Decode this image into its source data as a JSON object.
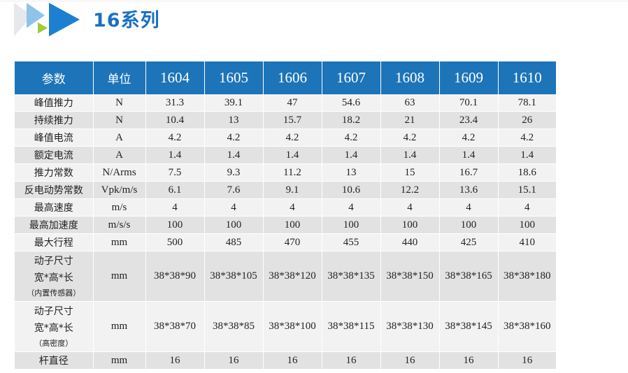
{
  "header": {
    "title": "16系列"
  },
  "table": {
    "headers": [
      "参数",
      "单位",
      "1604",
      "1605",
      "1606",
      "1607",
      "1608",
      "1609",
      "1610"
    ],
    "rows": [
      {
        "param": "峰值推力",
        "unit": "N",
        "values": [
          "31.3",
          "39.1",
          "47",
          "54.6",
          "63",
          "70.1",
          "78.1"
        ]
      },
      {
        "param": "持续推力",
        "unit": "N",
        "values": [
          "10.4",
          "13",
          "15.7",
          "18.2",
          "21",
          "23.4",
          "26"
        ]
      },
      {
        "param": "峰值电流",
        "unit": "A",
        "values": [
          "4.2",
          "4.2",
          "4.2",
          "4.2",
          "4.2",
          "4.2",
          "4.2"
        ]
      },
      {
        "param": "额定电流",
        "unit": "A",
        "values": [
          "1.4",
          "1.4",
          "1.4",
          "1.4",
          "1.4",
          "1.4",
          "1.4"
        ]
      },
      {
        "param": "推力常数",
        "unit": "N/Arms",
        "values": [
          "7.5",
          "9.3",
          "11.2",
          "13",
          "15",
          "16.7",
          "18.6"
        ]
      },
      {
        "param": "反电动势常数",
        "unit": "Vpk/m/s",
        "values": [
          "6.1",
          "7.6",
          "9.1",
          "10.6",
          "12.2",
          "13.6",
          "15.1"
        ]
      },
      {
        "param": "最高速度",
        "unit": "m/s",
        "values": [
          "4",
          "4",
          "4",
          "4",
          "4",
          "4",
          "4"
        ]
      },
      {
        "param": "最高加速度",
        "unit": "m/s/s",
        "values": [
          "100",
          "100",
          "100",
          "100",
          "100",
          "100",
          "100"
        ]
      },
      {
        "param": "最大行程",
        "unit": "mm",
        "values": [
          "500",
          "485",
          "470",
          "455",
          "440",
          "425",
          "410"
        ]
      },
      {
        "param_lines": [
          "动子尺寸",
          "宽*高*长",
          "（内置传感器）"
        ],
        "unit": "mm",
        "values": [
          "38*38*90",
          "38*38*105",
          "38*38*120",
          "38*38*135",
          "38*38*150",
          "38*38*165",
          "38*38*180"
        ]
      },
      {
        "param_lines": [
          "动子尺寸",
          "宽*高*长",
          "（高密度）"
        ],
        "unit": "mm",
        "values": [
          "38*38*70",
          "38*38*85",
          "38*38*100",
          "38*38*115",
          "38*38*130",
          "38*38*145",
          "38*38*160"
        ]
      },
      {
        "param": "杆直径",
        "unit": "mm",
        "values": [
          "16",
          "16",
          "16",
          "16",
          "16",
          "16",
          "16"
        ]
      }
    ]
  }
}
